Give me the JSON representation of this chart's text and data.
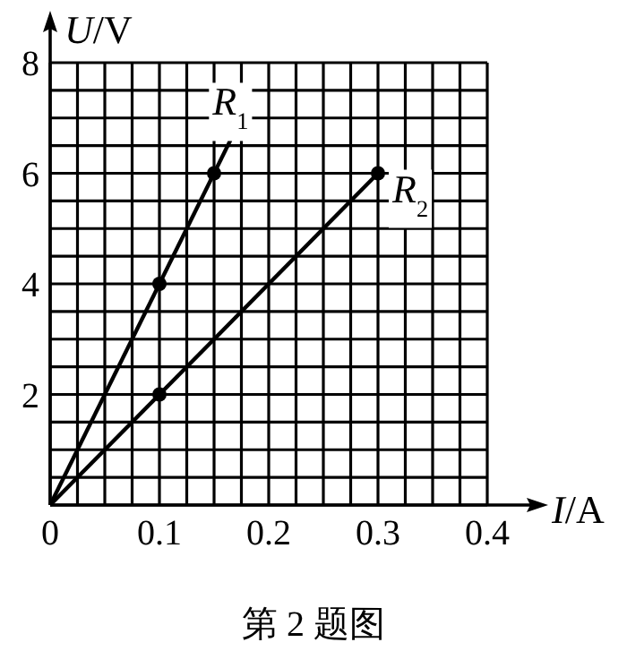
{
  "chart_data": {
    "type": "line",
    "xlabel": "*I*/A",
    "ylabel": "*U*/V",
    "annotations": [
      "第 2 题图"
    ],
    "xlim": [
      0,
      0.4
    ],
    "ylim": [
      0,
      8
    ],
    "grid": true,
    "xticks": [
      {
        "value": 0,
        "label": "0"
      },
      {
        "value": 0.025,
        "label": null
      },
      {
        "value": 0.05,
        "label": null
      },
      {
        "value": 0.075,
        "label": null
      },
      {
        "value": 0.1,
        "label": "0.1"
      },
      {
        "value": 0.125,
        "label": null
      },
      {
        "value": 0.15,
        "label": null
      },
      {
        "value": 0.175,
        "label": null
      },
      {
        "value": 0.2,
        "label": "0.2"
      },
      {
        "value": 0.225,
        "label": null
      },
      {
        "value": 0.25,
        "label": null
      },
      {
        "value": 0.275,
        "label": null
      },
      {
        "value": 0.3,
        "label": "0.3"
      },
      {
        "value": 0.325,
        "label": null
      },
      {
        "value": 0.35,
        "label": null
      },
      {
        "value": 0.375,
        "label": null
      },
      {
        "value": 0.4,
        "label": "0.4"
      }
    ],
    "yticks": [
      {
        "value": 0,
        "label": null
      },
      {
        "value": 0.5,
        "label": null
      },
      {
        "value": 1,
        "label": null
      },
      {
        "value": 1.5,
        "label": null
      },
      2,
      {
        "value": 2.5,
        "label": null
      },
      {
        "value": 3,
        "label": null
      },
      {
        "value": 3.5,
        "label": null
      },
      4,
      {
        "value": 4.5,
        "label": null
      },
      {
        "value": 5,
        "label": null
      },
      {
        "value": 5.5,
        "label": null
      },
      6,
      {
        "value": 6.5,
        "label": null
      },
      {
        "value": 7,
        "label": null
      },
      {
        "value": 7.5,
        "label": null
      },
      8
    ],
    "series": [
      {
        "name": "*R*$_{1}$",
        "color": "#000000",
        "marker": "none",
        "x": [
          0,
          0.165
        ],
        "values": [
          0,
          6.6
        ]
      },
      {
        "name": "*R*$_{2}$",
        "color": "#000000",
        "marker": "none",
        "x": [
          0,
          0.3
        ],
        "values": [
          0,
          6
        ]
      },
      {
        "type": "scatter",
        "color": "#000000",
        "marker": "circle",
        "x": [
          0.1,
          0.15,
          0.1,
          0.3
        ],
        "values": [
          4,
          6,
          2,
          6
        ]
      }
    ]
  }
}
